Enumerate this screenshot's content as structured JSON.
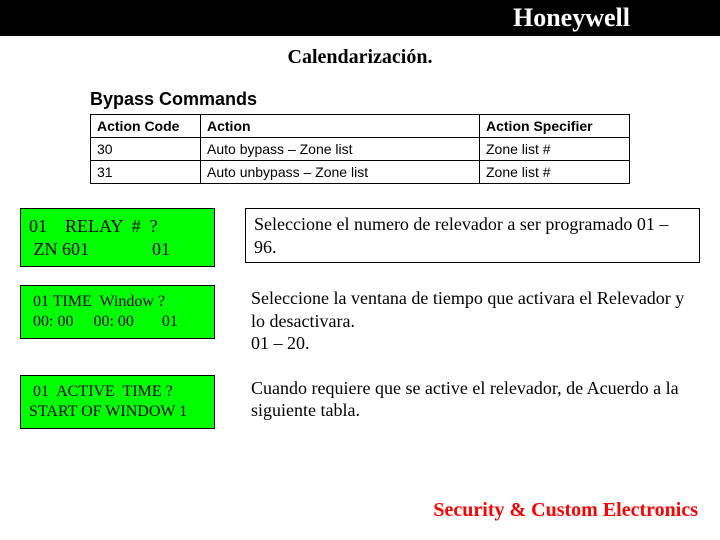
{
  "header": {
    "brand": "Honeywell"
  },
  "subtitle": "Calendarización.",
  "bypass": {
    "title": "Bypass Commands",
    "columns": [
      "Action Code",
      "Action",
      "Action Specifier"
    ],
    "rows": [
      [
        "30",
        "Auto bypass – Zone list",
        "Zone list #"
      ],
      [
        "31",
        "Auto unbypass – Zone list",
        "Zone list #"
      ]
    ]
  },
  "panels": [
    {
      "lcd_line1": "01    RELAY  #  ?",
      "lcd_line2": " ZN 601              01",
      "desc": "Seleccione el numero de relevador a ser programado 01 – 96.",
      "boxed": true,
      "small": false
    },
    {
      "lcd_line1": " 01 TIME  Window ?",
      "lcd_line2": " 00: 00     00: 00       01",
      "desc": "Seleccione la ventana de tiempo que activara el Relevador y lo desactivara.\n01 – 20.",
      "boxed": false,
      "small": true
    },
    {
      "lcd_line1": " 01  ACTIVE  TIME ?",
      "lcd_line2": "START OF WINDOW 1",
      "desc": "Cuando requiere que se active el relevador, de Acuerdo a la siguiente tabla.",
      "boxed": false,
      "small": true
    }
  ],
  "footer": "Security & Custom Electronics",
  "colors": {
    "header_bg": "#000000",
    "header_fg": "#ffffff",
    "lcd_bg": "#00ff00",
    "border": "#000000",
    "footer_fg": "#ff0000",
    "page_bg": "#ffffff"
  }
}
